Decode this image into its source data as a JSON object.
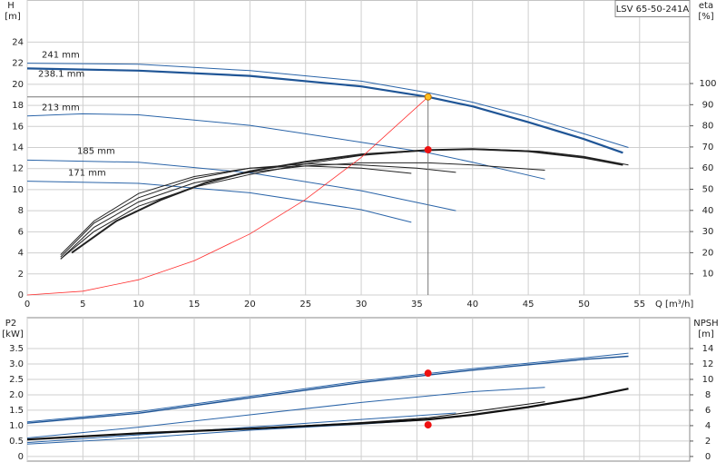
{
  "chart_data": [
    {
      "type": "line",
      "title": "LSV 65-50-241A",
      "ylabel": "H",
      "yunit": "[m]",
      "y2label": "eta",
      "y2unit": "[%]",
      "xlabel": "Q [m³/h]",
      "xlim": [
        0,
        59.5
      ],
      "xticks": [
        0,
        5,
        10,
        15,
        20,
        25,
        30,
        35,
        40,
        45,
        50,
        55
      ],
      "ylim": [
        0,
        28
      ],
      "yticks": [
        0,
        2,
        4,
        6,
        8,
        10,
        12,
        14,
        16,
        18,
        20,
        22,
        24
      ],
      "y2lim": [
        0,
        139.5
      ],
      "y2ticks": [
        10,
        20,
        30,
        40,
        50,
        60,
        70,
        80,
        90,
        100
      ],
      "grid": true,
      "series": [
        {
          "name": "241 mm",
          "color": "#2a64a8",
          "width": 1,
          "x": [
            0,
            10,
            20,
            30,
            36,
            40,
            45,
            50,
            54
          ],
          "values": [
            22,
            21.9,
            21.3,
            20.3,
            19.2,
            18.3,
            16.9,
            15.3,
            14
          ]
        },
        {
          "name": "238.1 mm",
          "color": "#1f5596",
          "width": 2.2,
          "x": [
            0,
            10,
            20,
            30,
            36,
            40,
            45,
            50,
            53.5
          ],
          "values": [
            21.5,
            21.3,
            20.8,
            19.8,
            18.8,
            17.9,
            16.4,
            14.8,
            13.5
          ]
        },
        {
          "name": "213 mm",
          "color": "#2a64a8",
          "width": 1,
          "x": [
            0,
            5,
            10,
            20,
            30,
            36,
            40,
            46.5
          ],
          "values": [
            17,
            17.2,
            17.1,
            16.1,
            14.5,
            13.5,
            12.6,
            11
          ]
        },
        {
          "name": "185 mm",
          "color": "#2a64a8",
          "width": 1,
          "x": [
            0,
            10,
            20,
            30,
            38.5
          ],
          "values": [
            12.8,
            12.6,
            11.6,
            9.9,
            8
          ]
        },
        {
          "name": "171 mm",
          "color": "#2a64a8",
          "width": 1,
          "x": [
            0,
            10,
            20,
            30,
            34.5
          ],
          "values": [
            10.8,
            10.6,
            9.7,
            8.1,
            6.9
          ]
        },
        {
          "axis": "y2",
          "color": "#222222",
          "width": 1,
          "x": [
            3,
            6,
            10,
            15,
            20,
            25,
            30,
            36,
            41,
            46,
            50,
            54
          ],
          "values": [
            17,
            30,
            42,
            51,
            57,
            62,
            66,
            68.5,
            69,
            68,
            65.5,
            61.5
          ]
        },
        {
          "axis": "y2",
          "color": "#222222",
          "width": 2,
          "x": [
            4,
            8,
            12,
            16,
            20,
            25,
            30,
            36,
            40,
            45,
            50,
            53.5
          ],
          "values": [
            20,
            35,
            45,
            53,
            58.5,
            63,
            66.5,
            68.5,
            69,
            68,
            65,
            61.5
          ]
        },
        {
          "axis": "y2",
          "color": "#222222",
          "width": 1,
          "x": [
            3,
            6,
            10,
            15,
            20,
            25,
            30,
            36,
            40,
            46.5
          ],
          "values": [
            17,
            32,
            44,
            53,
            58,
            61,
            62.5,
            62.5,
            61.5,
            59
          ]
        },
        {
          "axis": "y2",
          "color": "#222222",
          "width": 1,
          "x": [
            3,
            6,
            10,
            15,
            20,
            25,
            30,
            35,
            38.5
          ],
          "values": [
            18,
            34,
            46,
            55,
            60,
            62,
            61.5,
            60,
            58
          ]
        },
        {
          "axis": "y2",
          "color": "#222222",
          "width": 1,
          "x": [
            3,
            6,
            10,
            15,
            20,
            25,
            30,
            34.5
          ],
          "values": [
            19,
            35,
            48,
            56,
            60,
            61,
            60,
            57.5
          ]
        },
        {
          "color": "#ff3030",
          "width": 0.8,
          "x": [
            0,
            5,
            10,
            15,
            20,
            25,
            30,
            36
          ],
          "values": [
            0,
            0.36,
            1.45,
            3.26,
            5.8,
            9.07,
            13.06,
            18.8
          ]
        }
      ],
      "points": [
        {
          "x": 36,
          "y": 18.8,
          "color": "#ffc020"
        },
        {
          "x": 36,
          "y": 68.7,
          "axis": "y2",
          "color": "#ee1111"
        }
      ]
    },
    {
      "type": "line",
      "ylabel": "P2",
      "yunit": "[kW]",
      "y2label": "NPSH",
      "y2unit": "[m]",
      "xlim": [
        0,
        59.5
      ],
      "xticks": [
        0,
        5,
        10,
        15,
        20,
        25,
        30,
        35,
        40,
        45,
        50,
        55
      ],
      "ylim": [
        -0.15,
        4.5
      ],
      "yticks": [
        0,
        0.5,
        {
          "value": 1,
          "label": "1.0"
        },
        1.5,
        {
          "value": 2,
          "label": "2.0"
        },
        2.5,
        {
          "value": 3,
          "label": "3.0"
        },
        3.5
      ],
      "y2lim": [
        -0.6,
        18
      ],
      "y2ticks": [
        0,
        2,
        4,
        6,
        8,
        10,
        12,
        14
      ],
      "grid": true,
      "series": [
        {
          "color": "#2a64a8",
          "width": 1,
          "x": [
            0,
            10,
            20,
            30,
            40,
            50,
            54
          ],
          "values": [
            1.12,
            1.45,
            1.95,
            2.45,
            2.85,
            3.2,
            3.35
          ]
        },
        {
          "color": "#1f5596",
          "width": 1.4,
          "x": [
            0,
            10,
            20,
            30,
            40,
            50,
            54
          ],
          "values": [
            1.08,
            1.4,
            1.9,
            2.4,
            2.8,
            3.15,
            3.25
          ]
        },
        {
          "color": "#2a64a8",
          "width": 1,
          "x": [
            0,
            10,
            20,
            30,
            40,
            46.5
          ],
          "values": [
            0.6,
            0.95,
            1.35,
            1.75,
            2.1,
            2.24
          ]
        },
        {
          "color": "#2a64a8",
          "width": 1,
          "x": [
            0,
            10,
            20,
            30,
            38.5
          ],
          "values": [
            0.45,
            0.7,
            0.95,
            1.2,
            1.41
          ]
        },
        {
          "color": "#2a64a8",
          "width": 1,
          "x": [
            0,
            10,
            20,
            30,
            34.5
          ],
          "values": [
            0.4,
            0.6,
            0.85,
            1.05,
            1.15
          ]
        },
        {
          "axis": "y2",
          "color": "#111111",
          "width": 2.2,
          "x": [
            0,
            10,
            20,
            30,
            36,
            40,
            45,
            50,
            54
          ],
          "values": [
            2.2,
            3,
            3.6,
            4.3,
            4.8,
            5.4,
            6.4,
            7.6,
            8.8
          ]
        },
        {
          "axis": "y2",
          "color": "#111111",
          "width": 1,
          "x": [
            0,
            10,
            20,
            30,
            36,
            40,
            46.5
          ],
          "values": [
            2.2,
            3,
            3.6,
            4.4,
            5,
            5.8,
            7.1
          ]
        }
      ],
      "points": [
        {
          "x": 36,
          "y": 2.7,
          "color": "#ee1111"
        },
        {
          "x": 36,
          "y": 4.1,
          "axis": "y2",
          "color": "#ee1111"
        }
      ]
    }
  ]
}
